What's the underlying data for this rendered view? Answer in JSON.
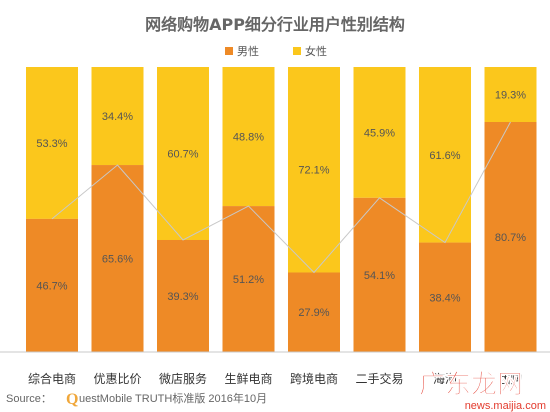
{
  "colors": {
    "male": "#EE8A26",
    "female": "#FBC71C",
    "title": "#666666",
    "watermark": "#E33B2E"
  },
  "chart_data": {
    "type": "bar",
    "stacked": true,
    "percent": true,
    "title": "网络购物APP细分行业用户性别结构",
    "legend": {
      "position": "top-center",
      "entries": [
        "男性",
        "女性"
      ]
    },
    "categories": [
      "综合电商",
      "优惠比价",
      "微店服务",
      "生鲜电商",
      "跨境电商",
      "二手交易",
      "海淘",
      "团购"
    ],
    "series": [
      {
        "name": "男性",
        "color": "#EE8A26",
        "values": [
          46.7,
          65.6,
          39.3,
          51.2,
          27.9,
          54.1,
          38.4,
          80.7
        ]
      },
      {
        "name": "女性",
        "color": "#FBC71C",
        "values": [
          53.3,
          34.4,
          60.7,
          48.8,
          72.1,
          45.9,
          61.6,
          19.3
        ]
      }
    ],
    "value_labels": {
      "male": [
        "46.7%",
        "65.6%",
        "39.3%",
        "51.2%",
        "27.9%",
        "54.1%",
        "38.4%",
        "80.7%"
      ],
      "female": [
        "53.3%",
        "34.4%",
        "60.7%",
        "48.8%",
        "72.1%",
        "45.9%",
        "61.6%",
        "19.3%"
      ]
    },
    "ylim": [
      0,
      100
    ],
    "grid": false,
    "connector_line": true
  },
  "source": {
    "prefix": "Source：",
    "brand_q": "Q",
    "brand_rest": "uestMobile TRUTH标准版 2016年10月"
  },
  "watermark": {
    "text": "广东龙网",
    "subtext": "news.maijia.com"
  }
}
